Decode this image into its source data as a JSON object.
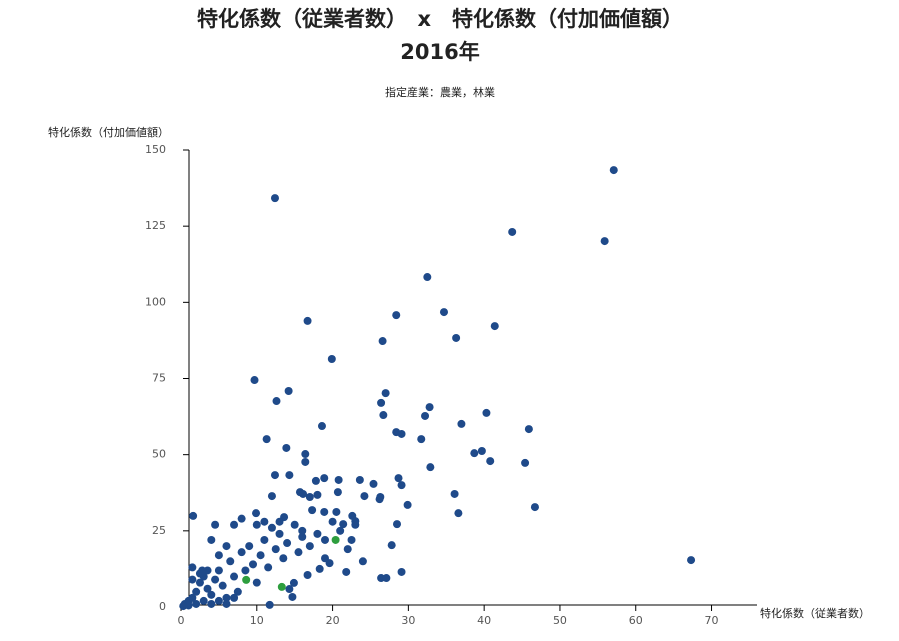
{
  "chart_data": {
    "type": "scatter",
    "title": "特化係数（従業者数）　x　特化係数（付加価値額）",
    "title_line2": "2016年",
    "subtitle": "指定産業：農業，林業",
    "xlabel": "特化係数（従業者数）",
    "ylabel": "特化係数（付加価値額）",
    "xlim": [
      0,
      76
    ],
    "ylim": [
      0,
      150
    ],
    "xticks": [
      0,
      10,
      20,
      30,
      40,
      50,
      60,
      70
    ],
    "yticks": [
      0,
      25,
      50,
      75,
      100,
      125,
      150
    ],
    "grid": false,
    "series": [
      {
        "color": "#1f4a8a",
        "x": [
          57.1,
          12.4,
          43.7,
          55.9,
          32.5,
          34.7,
          28.4,
          16.7,
          41.4,
          36.3,
          26.6,
          19.9,
          9.7,
          14.2,
          27.0,
          32.8,
          26.4,
          12.6,
          40.3,
          32.2,
          26.7,
          37.0,
          18.6,
          45.9,
          28.4,
          29.1,
          31.7,
          11.3,
          13.9,
          39.7,
          38.7,
          16.4,
          40.8,
          45.4,
          32.9,
          16.4,
          12.4,
          14.3,
          28.7,
          23.6,
          20.8,
          18.9,
          17.8,
          29.1,
          25.4,
          36.1,
          46.7,
          36.6,
          29.9,
          26.3,
          26.2,
          24.2,
          20.7,
          15.7,
          16.1,
          12.0,
          17.0,
          18.0,
          17.3,
          18.9,
          20.5,
          22.6,
          23.0,
          28.5,
          21.4,
          1.6,
          9.9,
          13.6,
          67.3,
          27.8,
          22.5,
          29.1,
          26.4,
          27.1,
          21.8,
          18.3,
          19.6,
          16.7,
          14.9,
          14.3,
          14.7,
          11.7,
          0.5,
          1,
          1.5,
          2,
          2.5,
          3,
          3.5,
          4,
          4.5,
          5,
          5.5,
          6,
          6.5,
          7,
          7.5,
          8,
          8.5,
          9,
          9.5,
          10,
          10.5,
          11,
          11.5,
          12,
          12.5,
          13,
          13.5,
          14,
          15,
          15.5,
          16,
          17,
          18,
          19,
          20,
          21,
          22,
          23,
          24,
          2,
          3,
          4,
          5,
          6,
          7,
          1,
          0.3,
          2.5,
          3.5,
          5,
          6,
          7,
          8,
          4,
          10,
          13,
          11,
          16,
          19,
          1.5,
          1.5,
          4.5,
          2.8
        ],
        "values": [
          143.4,
          134.2,
          123.1,
          120.1,
          108.3,
          96.8,
          95.8,
          93.9,
          92.2,
          88.3,
          87.3,
          81.4,
          74.5,
          70.9,
          70.2,
          65.6,
          67.0,
          67.6,
          63.7,
          62.7,
          63.0,
          60.1,
          59.4,
          58.4,
          57.4,
          56.8,
          55.1,
          55.1,
          52.2,
          51.2,
          50.5,
          50.2,
          47.9,
          47.3,
          45.9,
          47.6,
          43.3,
          43.3,
          42.3,
          41.7,
          41.7,
          42.3,
          41.4,
          40.0,
          40.4,
          37.1,
          32.8,
          30.8,
          33.5,
          36.1,
          35.4,
          36.4,
          37.7,
          37.7,
          37.1,
          36.4,
          36.1,
          36.8,
          31.8,
          31.2,
          31.2,
          29.9,
          28.2,
          27.2,
          27.2,
          29.9,
          30.8,
          29.5,
          15.4,
          20.3,
          22.0,
          11.5,
          9.5,
          9.5,
          11.5,
          12.5,
          14.4,
          10.5,
          7.9,
          5.9,
          3.3,
          0.7,
          1,
          2,
          3,
          5,
          8,
          10,
          6,
          4,
          9,
          12,
          7,
          3,
          15,
          10,
          5,
          18,
          12,
          20,
          14,
          8,
          17,
          22,
          13,
          26,
          19,
          24,
          16,
          21,
          27,
          18,
          23,
          20,
          24,
          16,
          28,
          25,
          19,
          27,
          15,
          1,
          2,
          1,
          2,
          1,
          3,
          0.5,
          0.3,
          11,
          12,
          17,
          20,
          27,
          29,
          22,
          27,
          28,
          28,
          25,
          22,
          9,
          13,
          27,
          12
        ]
      },
      {
        "color": "#2e9e3e",
        "x": [
          20.4,
          13.3,
          8.6
        ],
        "values": [
          22.0,
          6.6,
          8.9
        ]
      }
    ]
  }
}
